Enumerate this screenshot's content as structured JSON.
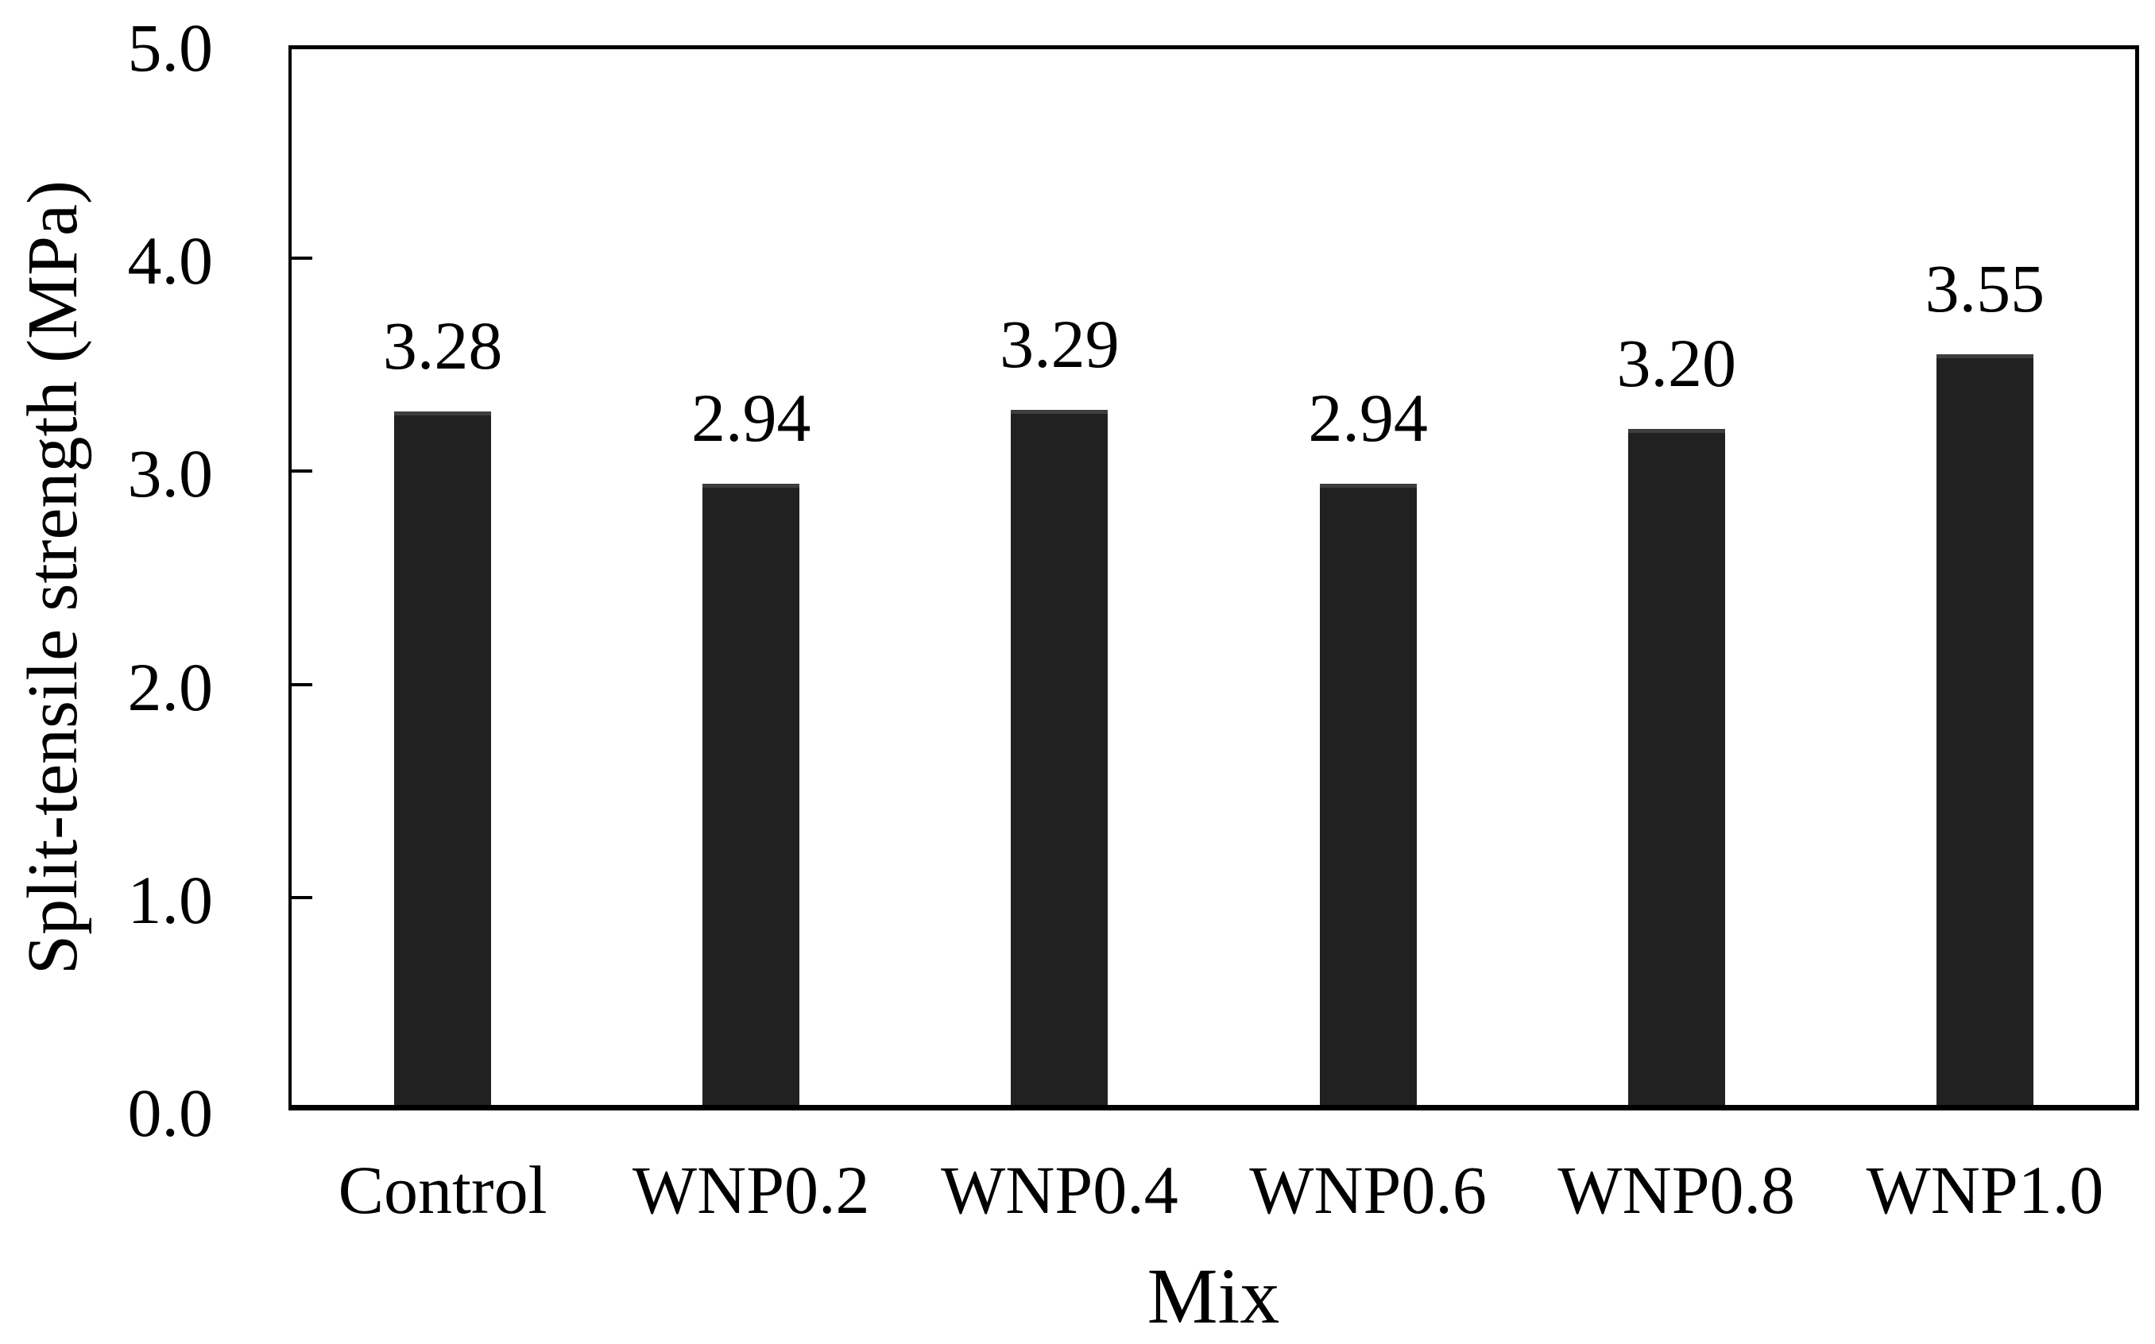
{
  "chart_data": {
    "type": "bar",
    "title": "",
    "xlabel": "Mix",
    "ylabel": "Split-tensile strength (MPa)",
    "categories": [
      "Control",
      "WNP0.2",
      "WNP0.4",
      "WNP0.6",
      "WNP0.8",
      "WNP1.0"
    ],
    "values": [
      3.28,
      2.94,
      3.29,
      2.94,
      3.2,
      3.55
    ],
    "data_labels": [
      "3.28",
      "2.94",
      "3.29",
      "2.94",
      "3.20",
      "3.55"
    ],
    "ylim": [
      0.0,
      5.0
    ],
    "ytick_labels": [
      "0.0",
      "1.0",
      "2.0",
      "3.0",
      "4.0",
      "5.0"
    ],
    "grid": false,
    "legend": "none",
    "colors": {
      "bar_fill": "#212121",
      "bar_top_edge": "#3e3e3e",
      "axis": "#000000",
      "text": "#000000",
      "background": "#ffffff"
    }
  }
}
